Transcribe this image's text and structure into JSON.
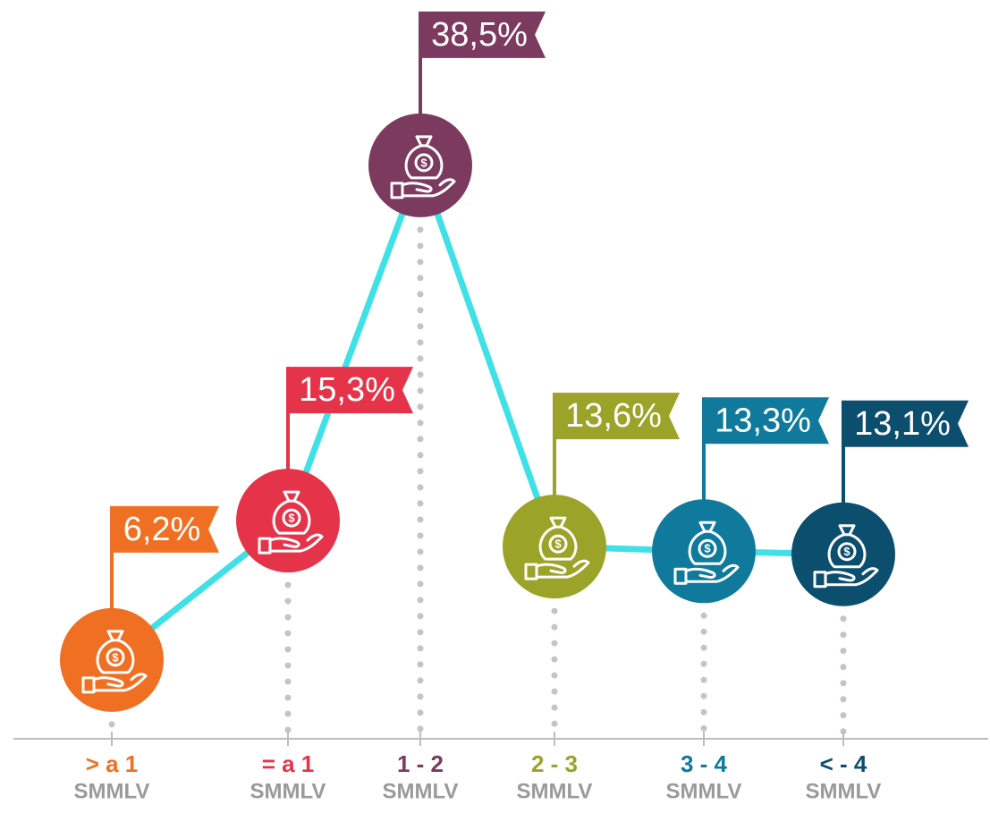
{
  "chart_data": {
    "type": "line",
    "categories": [
      "> a 1",
      "= a 1",
      "1 - 2",
      "2 - 3",
      "3 - 4",
      "< - 4"
    ],
    "category_unit": "SMMLV",
    "values": [
      6.2,
      15.3,
      38.5,
      13.6,
      13.3,
      13.1
    ],
    "value_labels": [
      "6,2%",
      "15,3%",
      "38,5%",
      "13,6%",
      "13,3%",
      "13,1%"
    ],
    "colors": [
      "#f07023",
      "#e5344a",
      "#7b3a5e",
      "#9ba328",
      "#0f7a9c",
      "#0c4e6e"
    ],
    "line_color": "#3fe0e6"
  }
}
